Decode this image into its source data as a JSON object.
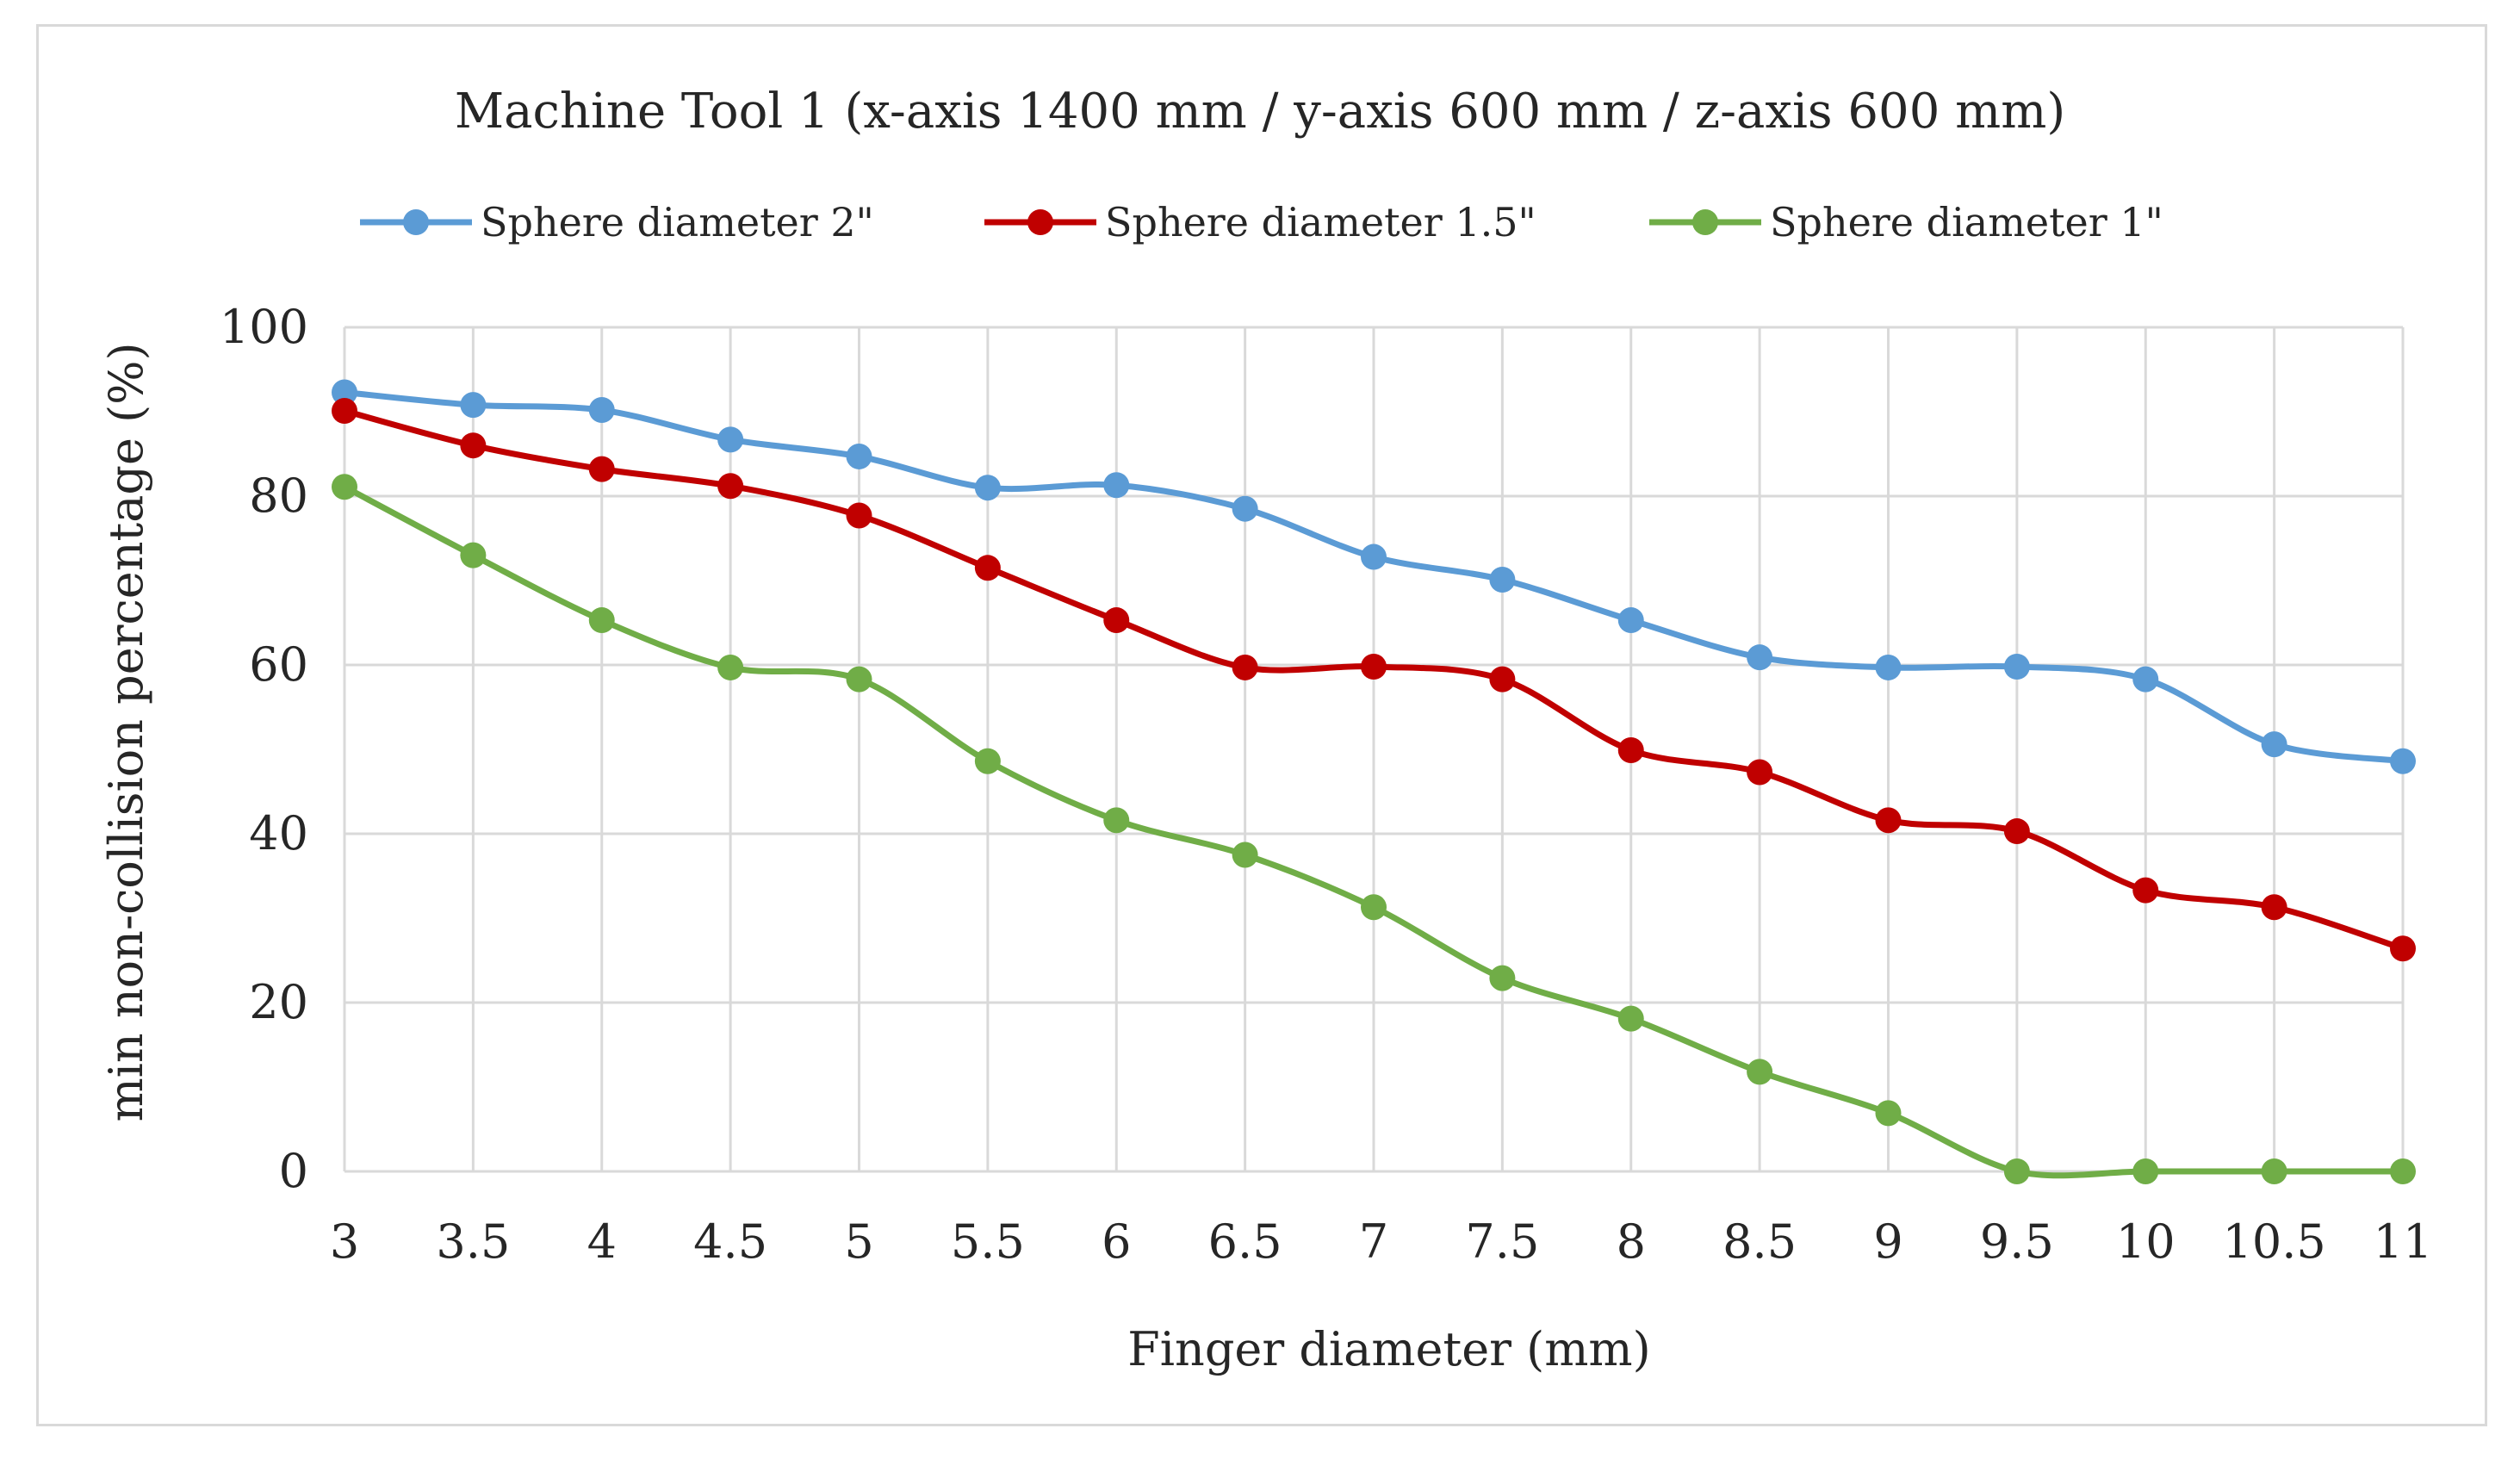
{
  "chart_data": {
    "type": "line",
    "title": "Machine Tool 1 (x-axis 1400 mm / y-axis 600 mm / z-axis 600 mm)",
    "xlabel": "Finger diameter (mm)",
    "ylabel": "min non-collision percentage (%)",
    "x": [
      "3",
      "3.5",
      "4",
      "4.5",
      "5",
      "5.5",
      "6",
      "6.5",
      "7",
      "7.5",
      "8",
      "8.5",
      "9",
      "9.5",
      "10",
      "10.5",
      "11"
    ],
    "ylim": [
      0,
      100
    ],
    "yticks": [
      "0",
      "20",
      "40",
      "60",
      "80",
      "100"
    ],
    "grid": true,
    "legend_position": "top",
    "series": [
      {
        "name": "Sphere diameter 2\"",
        "color": "#5b9bd5",
        "values": [
          92.3,
          90.8,
          90.2,
          86.7,
          84.7,
          81.0,
          81.3,
          78.5,
          72.8,
          70.1,
          65.3,
          60.9,
          59.7,
          59.8,
          58.3,
          50.6,
          48.6
        ]
      },
      {
        "name": "Sphere diameter 1.5\"",
        "color": "#c00000",
        "values": [
          90.1,
          86.0,
          83.2,
          81.2,
          77.7,
          71.5,
          65.3,
          59.7,
          59.8,
          58.3,
          49.9,
          47.3,
          41.6,
          40.3,
          33.3,
          31.3,
          26.4
        ]
      },
      {
        "name": "Sphere diameter 1\"",
        "color": "#70ad47",
        "values": [
          81.1,
          73.0,
          65.3,
          59.7,
          58.3,
          48.6,
          41.6,
          37.5,
          31.3,
          22.9,
          18.1,
          11.8,
          6.9,
          0.0,
          0.0,
          0.0,
          0.0
        ]
      }
    ]
  }
}
